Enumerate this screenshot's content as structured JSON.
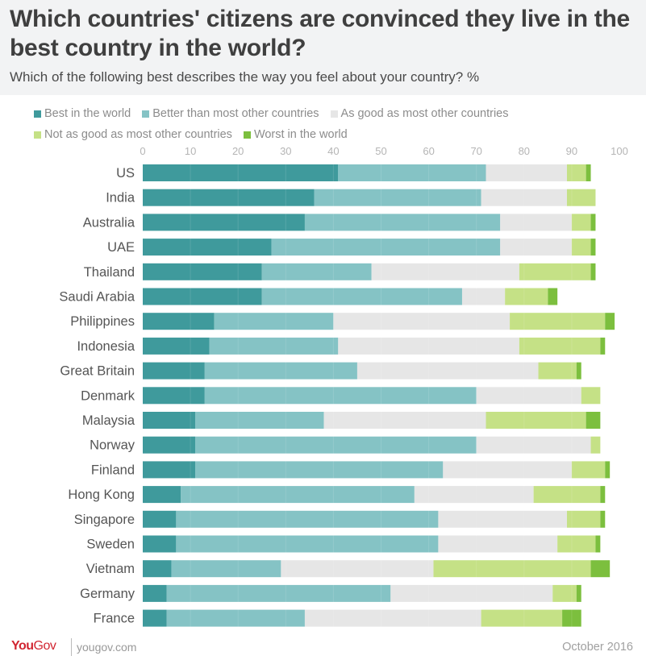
{
  "header": {
    "title": "Which countries' citizens are convinced they live in the best country in the world?",
    "subtitle": "Which of the following best describes the way you feel about your country? %"
  },
  "footer": {
    "logo_you": "You",
    "logo_gov": "Gov",
    "url": "yougov.com",
    "date": "October 2016"
  },
  "chart_data": {
    "type": "bar",
    "orientation": "horizontal",
    "stacked": true,
    "title": "Which countries' citizens are convinced they live in the best country in the world?",
    "subtitle": "Which of the following best describes the way you feel about your country? %",
    "xlabel": "",
    "ylabel": "",
    "xlim": [
      0,
      100
    ],
    "xticks": [
      0,
      10,
      20,
      30,
      40,
      50,
      60,
      70,
      80,
      90,
      100
    ],
    "grid": true,
    "legend_position": "top",
    "categories": [
      "US",
      "India",
      "Australia",
      "UAE",
      "Thailand",
      "Saudi Arabia",
      "Philippines",
      "Indonesia",
      "Great Britain",
      "Denmark",
      "Malaysia",
      "Norway",
      "Finland",
      "Hong Kong",
      "Singapore",
      "Sweden",
      "Vietnam",
      "Germany",
      "France"
    ],
    "series": [
      {
        "name": "Best in the world",
        "color": "#3f9a9c",
        "values": [
          41,
          36,
          34,
          27,
          25,
          25,
          15,
          14,
          13,
          13,
          11,
          11,
          11,
          8,
          7,
          7,
          6,
          5,
          5
        ]
      },
      {
        "name": "Better than most other countries",
        "color": "#85c3c5",
        "values": [
          31,
          35,
          41,
          48,
          23,
          42,
          25,
          27,
          32,
          57,
          27,
          59,
          52,
          49,
          55,
          55,
          23,
          47,
          29
        ]
      },
      {
        "name": "As good as most other countries",
        "color": "#e6e6e6",
        "values": [
          17,
          18,
          15,
          15,
          31,
          9,
          37,
          38,
          38,
          22,
          34,
          24,
          27,
          25,
          27,
          25,
          32,
          34,
          37
        ]
      },
      {
        "name": "Not as good as most other countries",
        "color": "#c5e186",
        "values": [
          4,
          6,
          4,
          4,
          15,
          9,
          20,
          17,
          8,
          4,
          21,
          2,
          7,
          14,
          7,
          8,
          33,
          5,
          17
        ]
      },
      {
        "name": "Worst in the world",
        "color": "#7cbf3e",
        "values": [
          1,
          0,
          1,
          1,
          1,
          2,
          2,
          1,
          1,
          0,
          3,
          0,
          1,
          1,
          1,
          1,
          4,
          1,
          4
        ]
      }
    ]
  }
}
